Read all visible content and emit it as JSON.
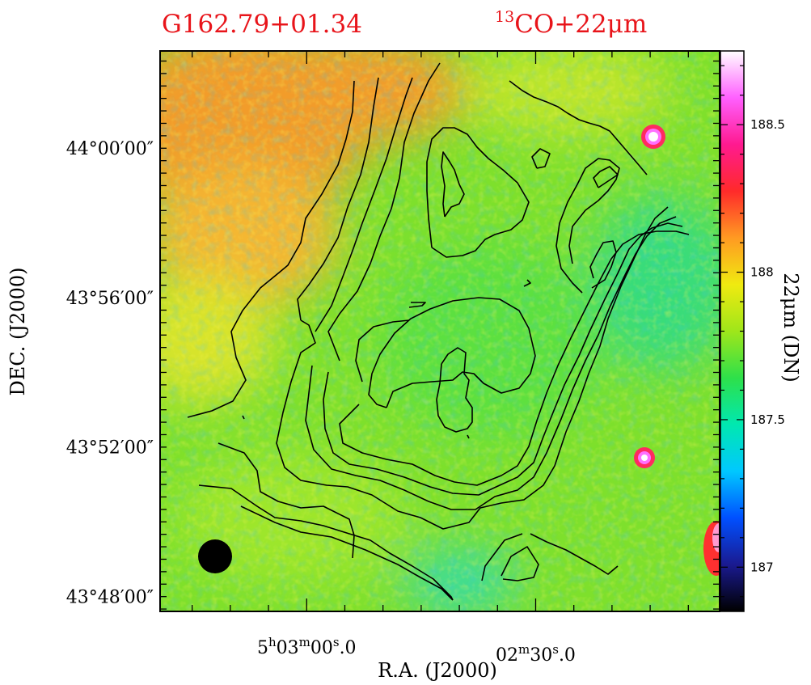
{
  "chart_data": {
    "type": "heatmap",
    "title": "G162.79+01.34",
    "subtitle": {
      "sup": "13",
      "main": "CO+22μm"
    },
    "xlabel": "R.A.  (J2000)",
    "ylabel": "DEC.  (J2000)",
    "x_ticks": [
      {
        "ra_sec": 180,
        "main": "5",
        "h": "h",
        "m_num": "03",
        "m": "m",
        "s_num": "00",
        "s": "s",
        "frac": ".0"
      },
      {
        "ra_sec": 150,
        "main": "",
        "h": "",
        "m_num": "02",
        "m": "m",
        "s_num": "30",
        "s": "s",
        "frac": ".0"
      }
    ],
    "y_ticks": [
      {
        "dec_arcmin": 0,
        "label": "44°00′00″"
      },
      {
        "dec_arcmin": -4,
        "label": "43°56′00″"
      },
      {
        "dec_arcmin": -8,
        "label": "43°52′00″"
      },
      {
        "dec_arcmin": -12,
        "label": "43°48′00″"
      }
    ],
    "x_range_ra_sec": [
      199.2,
      125.9
    ],
    "y_range_dec_arcmin": [
      2.6,
      -12.4
    ],
    "colorbar": {
      "label": "22μm  (DN)",
      "range": [
        186.85,
        188.75
      ],
      "ticks": [
        {
          "value": 187,
          "label": "187"
        },
        {
          "value": 187.5,
          "label": "187.5"
        },
        {
          "value": 188,
          "label": "188"
        },
        {
          "value": 188.5,
          "label": "188.5"
        }
      ],
      "colors": [
        "#000000",
        "#1a1a90",
        "#0050ff",
        "#00c8ff",
        "#00e8b0",
        "#2ee04a",
        "#9fe61a",
        "#f0ea10",
        "#ff9a22",
        "#ff2a2a",
        "#ff1a90",
        "#ff60ff",
        "#ffffff"
      ]
    },
    "contour_levels_count": 8,
    "point_sources": [
      "bright 22μm source near 44°00′",
      "bright 22μm source near 43°52′",
      "extended emission at the right edge near 43°49′"
    ],
    "beam": "filled black circle, lower left"
  }
}
